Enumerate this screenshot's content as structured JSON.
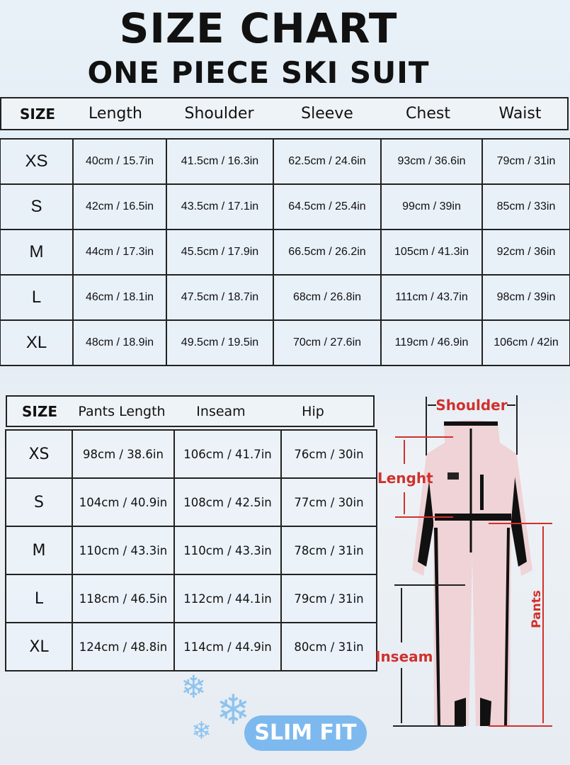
{
  "title": "SIZE CHART",
  "subtitle": "ONE PIECE SKI SUIT",
  "top_table": {
    "headers": [
      "SIZE",
      "Length",
      "Shoulder",
      "Sleeve",
      "Chest",
      "Waist"
    ],
    "rows": [
      [
        "XS",
        "40cm / 15.7in",
        "41.5cm / 16.3in",
        "62.5cm / 24.6in",
        "93cm / 36.6in",
        "79cm / 31in"
      ],
      [
        "S",
        "42cm / 16.5in",
        "43.5cm / 17.1in",
        "64.5cm / 25.4in",
        "99cm / 39in",
        "85cm / 33in"
      ],
      [
        "M",
        "44cm / 17.3in",
        "45.5cm / 17.9in",
        "66.5cm / 26.2in",
        "105cm / 41.3in",
        "92cm / 36in"
      ],
      [
        "L",
        "46cm / 18.1in",
        "47.5cm / 18.7in",
        "68cm / 26.8in",
        "111cm / 43.7in",
        "98cm / 39in"
      ],
      [
        "XL",
        "48cm / 18.9in",
        "49.5cm / 19.5in",
        "70cm / 27.6in",
        "119cm / 46.9in",
        "106cm / 42in"
      ]
    ]
  },
  "bottom_table": {
    "headers": [
      "SIZE",
      "Pants Length",
      "Inseam",
      "Hip"
    ],
    "rows": [
      [
        "XS",
        "98cm / 38.6in",
        "106cm / 41.7in",
        "76cm / 30in"
      ],
      [
        "S",
        "104cm / 40.9in",
        "108cm / 42.5in",
        "77cm / 30in"
      ],
      [
        "M",
        "110cm / 43.3in",
        "110cm / 43.3in",
        "78cm / 31in"
      ],
      [
        "L",
        "118cm / 46.5in",
        "112cm / 44.1in",
        "79cm / 31in"
      ],
      [
        "XL",
        "124cm / 48.8in",
        "114cm / 44.9in",
        "80cm / 31in"
      ]
    ]
  },
  "figure": {
    "labels": {
      "shoulder": "Shoulder",
      "length": "Lenght",
      "pants": "Pants",
      "inseam": "Inseam"
    },
    "suit_color": "#efd3d6",
    "accent_color": "#d0312d"
  },
  "badge": "SLIM FIT",
  "badge_color": "#7db9ee"
}
